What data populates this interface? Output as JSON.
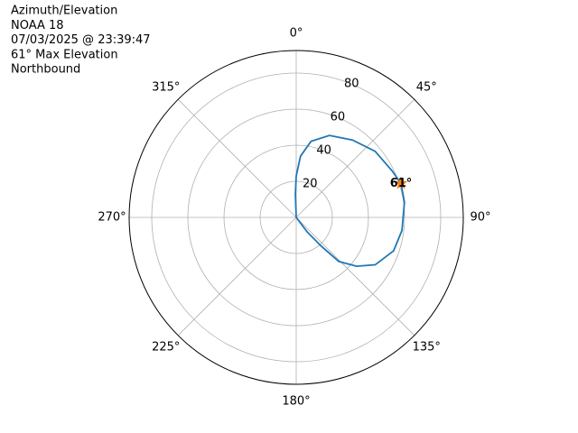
{
  "chart_data": {
    "type": "polar",
    "title": [
      "Azimuth/Elevation",
      "NOAA 18",
      "07/03/2025 @ 23:39:47",
      "61° Max Elevation",
      "Northbound"
    ],
    "theta_zero": "N",
    "theta_direction": "clockwise",
    "rlim": [
      0,
      92.5
    ],
    "rticks": [
      20,
      40,
      60,
      80
    ],
    "rlabel_theta": 22.5,
    "thetaticks": [
      {
        "value": 0,
        "label": "0°"
      },
      {
        "value": 45,
        "label": "45°"
      },
      {
        "value": 90,
        "label": "90°"
      },
      {
        "value": 135,
        "label": "135°"
      },
      {
        "value": 180,
        "label": "180°"
      },
      {
        "value": 225,
        "label": "225°"
      },
      {
        "value": 270,
        "label": "270°"
      },
      {
        "value": 315,
        "label": "315°"
      }
    ],
    "grid": true,
    "series": [
      {
        "color": "#1f77b4",
        "theta": [
          0,
          358,
          0,
          4,
          11,
          22,
          36,
          50,
          64,
          72,
          82,
          97,
          109,
          121,
          129,
          136,
          139,
          143,
          143
        ],
        "r": [
          0,
          13,
          23,
          34,
          43,
          49,
          53,
          57,
          59,
          61,
          60.5,
          59,
          57,
          51,
          43,
          34,
          21,
          10,
          0
        ]
      }
    ],
    "marker": {
      "theta": 72,
      "r": 61,
      "value_label": "61°",
      "color": "#ff7f0e"
    }
  }
}
